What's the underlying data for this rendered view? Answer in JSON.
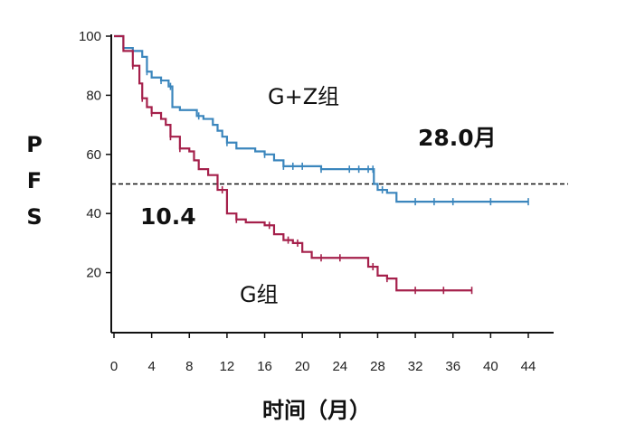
{
  "chart_data": {
    "type": "line",
    "subtype": "kaplan-meier step curve",
    "title": "",
    "xlabel": "时间（月）",
    "ylabel": "PFS",
    "xlim": [
      0,
      44
    ],
    "ylim": [
      0,
      100
    ],
    "xticks": [
      0,
      4,
      8,
      12,
      16,
      20,
      24,
      28,
      32,
      36,
      40,
      44
    ],
    "yticks": [
      20,
      40,
      60,
      80,
      100
    ],
    "reference_line": {
      "y": 50,
      "style": "dashed"
    },
    "series": [
      {
        "name": "G+Z组",
        "color": "#3b86bd",
        "x": [
          0,
          1,
          2,
          3,
          3.5,
          4,
          5,
          5.8,
          6.2,
          7,
          8,
          8.8,
          9.5,
          10.5,
          11,
          11.5,
          12,
          13,
          14,
          15,
          16,
          17,
          18,
          20,
          22,
          24,
          26,
          27,
          27.6,
          28,
          29,
          30,
          33,
          37,
          44
        ],
        "y": [
          100,
          96,
          95,
          93,
          88,
          86,
          85,
          83,
          76,
          75,
          75,
          73,
          72,
          70,
          68,
          66,
          64,
          62,
          62,
          61,
          60,
          58,
          56,
          56,
          55,
          55,
          55,
          55,
          50,
          48,
          47,
          44,
          44,
          44,
          44
        ]
      },
      {
        "name": "G组",
        "color": "#a5204b",
        "x": [
          0,
          1,
          2,
          2.7,
          3,
          3.5,
          4,
          5,
          5.5,
          6,
          7,
          8,
          8.5,
          9,
          10,
          11,
          12,
          13,
          14,
          16,
          17,
          18,
          19,
          20,
          21,
          24,
          27,
          28,
          29,
          30,
          32,
          35,
          38
        ],
        "y": [
          100,
          95,
          90,
          84,
          79,
          76,
          74,
          72,
          70,
          66,
          62,
          61,
          58,
          55,
          53,
          48,
          40,
          38,
          37,
          36,
          33,
          31,
          30,
          27,
          25,
          25,
          22,
          19,
          18,
          14,
          14,
          14,
          14
        ]
      }
    ],
    "censor_marks": [
      {
        "series": "G+Z组",
        "x": [
          3.5,
          5,
          6,
          9,
          12,
          16,
          18,
          19,
          20,
          22,
          25,
          26,
          27,
          27.5,
          28.5,
          32,
          34,
          36,
          40,
          44
        ]
      },
      {
        "series": "G组",
        "x": [
          2,
          3,
          4,
          6,
          7,
          11.5,
          13,
          16.5,
          18.5,
          19.5,
          22,
          24,
          27.5,
          29,
          32,
          35,
          38
        ]
      }
    ],
    "annotations": [
      {
        "text": "G+Z组",
        "target": "G+Z组"
      },
      {
        "text": "28.0月",
        "target": "G+Z组 median"
      },
      {
        "text": "10.4",
        "target": "G组 median"
      },
      {
        "text": "G组",
        "target": "G组"
      }
    ]
  }
}
